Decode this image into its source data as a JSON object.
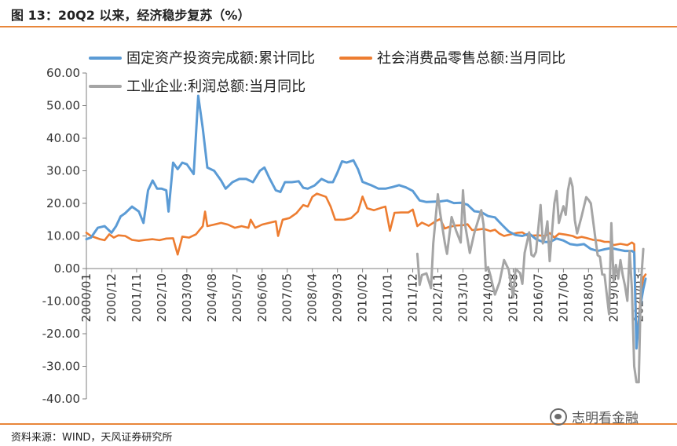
{
  "figure": {
    "title": "图 13：20Q2 以来，经济稳步复苏（%）",
    "source": "资料来源：WIND，天风证券研究所",
    "watermark": "志明看金融",
    "watermark_icon": "wechat-icon"
  },
  "chart_data": {
    "type": "line",
    "title": "",
    "xlabel": "",
    "ylabel": "",
    "ylim": [
      -40,
      60
    ],
    "yticks": [
      "60.00",
      "50.00",
      "40.00",
      "30.00",
      "20.00",
      "10.00",
      "0.00",
      "-10.00",
      "-20.00",
      "-30.00",
      "-40.00"
    ],
    "ytick_values": [
      60,
      50,
      40,
      30,
      20,
      10,
      0,
      -10,
      -20,
      -30,
      -40
    ],
    "x_range": [
      "2000/01",
      "2020/06"
    ],
    "xticks": [
      "2000/01",
      "2000/12",
      "2001/11",
      "2002/10",
      "2003/09",
      "2004/08",
      "2005/07",
      "2006/06",
      "2007/05",
      "2008/04",
      "2009/03",
      "2010/02",
      "2011/01",
      "2011/12",
      "2012/11",
      "2013/10",
      "2014/09",
      "2015/08",
      "2016/07",
      "2017/06",
      "2018/05",
      "2019/04",
      "2020/03"
    ],
    "grid": false,
    "legend_position": "top",
    "series": [
      {
        "name": "固定资产投资完成额:累计同比",
        "color": "#5b9bd5",
        "points": [
          [
            "2000/01",
            9.0
          ],
          [
            "2000/03",
            9.5
          ],
          [
            "2000/06",
            12.5
          ],
          [
            "2000/09",
            13.0
          ],
          [
            "2000/12",
            11.0
          ],
          [
            "2001/02",
            13.0
          ],
          [
            "2001/04",
            16.0
          ],
          [
            "2001/06",
            17.0
          ],
          [
            "2001/09",
            19.0
          ],
          [
            "2001/12",
            17.5
          ],
          [
            "2002/02",
            14.0
          ],
          [
            "2002/04",
            24.0
          ],
          [
            "2002/06",
            27.0
          ],
          [
            "2002/08",
            24.5
          ],
          [
            "2002/10",
            24.5
          ],
          [
            "2002/12",
            24.0
          ],
          [
            "2003/01",
            17.5
          ],
          [
            "2003/03",
            32.5
          ],
          [
            "2003/05",
            30.5
          ],
          [
            "2003/07",
            32.5
          ],
          [
            "2003/09",
            32.0
          ],
          [
            "2003/12",
            29.0
          ],
          [
            "2004/02",
            53.0
          ],
          [
            "2004/04",
            43.0
          ],
          [
            "2004/06",
            31.0
          ],
          [
            "2004/09",
            30.0
          ],
          [
            "2004/12",
            27.0
          ],
          [
            "2005/02",
            24.5
          ],
          [
            "2005/05",
            26.5
          ],
          [
            "2005/08",
            27.5
          ],
          [
            "2005/11",
            27.5
          ],
          [
            "2006/02",
            26.5
          ],
          [
            "2006/05",
            30.0
          ],
          [
            "2006/07",
            31.0
          ],
          [
            "2006/09",
            28.0
          ],
          [
            "2006/12",
            24.0
          ],
          [
            "2007/02",
            23.5
          ],
          [
            "2007/04",
            26.5
          ],
          [
            "2007/07",
            26.5
          ],
          [
            "2007/10",
            26.8
          ],
          [
            "2007/12",
            24.8
          ],
          [
            "2008/02",
            24.5
          ],
          [
            "2008/05",
            25.5
          ],
          [
            "2008/08",
            27.5
          ],
          [
            "2008/11",
            26.5
          ],
          [
            "2009/01",
            26.5
          ],
          [
            "2009/03",
            29.5
          ],
          [
            "2009/05",
            32.9
          ],
          [
            "2009/07",
            32.5
          ],
          [
            "2009/10",
            33.2
          ],
          [
            "2009/12",
            30.5
          ],
          [
            "2010/02",
            26.6
          ],
          [
            "2010/06",
            25.5
          ],
          [
            "2010/09",
            24.5
          ],
          [
            "2010/12",
            24.5
          ],
          [
            "2011/03",
            25.0
          ],
          [
            "2011/06",
            25.6
          ],
          [
            "2011/09",
            24.9
          ],
          [
            "2011/12",
            23.8
          ],
          [
            "2012/03",
            20.9
          ],
          [
            "2012/06",
            20.4
          ],
          [
            "2012/09",
            20.5
          ],
          [
            "2012/12",
            20.6
          ],
          [
            "2013/03",
            20.9
          ],
          [
            "2013/06",
            20.1
          ],
          [
            "2013/09",
            20.2
          ],
          [
            "2013/12",
            19.6
          ],
          [
            "2014/03",
            17.6
          ],
          [
            "2014/06",
            17.3
          ],
          [
            "2014/09",
            16.1
          ],
          [
            "2014/12",
            15.7
          ],
          [
            "2015/03",
            13.5
          ],
          [
            "2015/06",
            11.4
          ],
          [
            "2015/09",
            10.3
          ],
          [
            "2015/12",
            10.0
          ],
          [
            "2016/03",
            10.7
          ],
          [
            "2016/06",
            9.0
          ],
          [
            "2016/09",
            8.2
          ],
          [
            "2016/12",
            8.1
          ],
          [
            "2017/03",
            9.2
          ],
          [
            "2017/06",
            8.6
          ],
          [
            "2017/09",
            7.5
          ],
          [
            "2017/12",
            7.2
          ],
          [
            "2018/03",
            7.5
          ],
          [
            "2018/06",
            6.0
          ],
          [
            "2018/09",
            5.4
          ],
          [
            "2018/12",
            5.9
          ],
          [
            "2019/03",
            6.3
          ],
          [
            "2019/06",
            5.8
          ],
          [
            "2019/09",
            5.4
          ],
          [
            "2019/12",
            5.4
          ],
          [
            "2020/01",
            5.0
          ],
          [
            "2020/02",
            -24.5
          ],
          [
            "2020/03",
            -16.1
          ],
          [
            "2020/04",
            -10.3
          ],
          [
            "2020/05",
            -6.3
          ],
          [
            "2020/06",
            -3.1
          ]
        ]
      },
      {
        "name": "社会消费品零售总额:当月同比",
        "color": "#ed7d31",
        "points": [
          [
            "2000/01",
            11.0
          ],
          [
            "2000/03",
            10.0
          ],
          [
            "2000/05",
            9.5
          ],
          [
            "2000/07",
            9.0
          ],
          [
            "2000/09",
            8.7
          ],
          [
            "2000/11",
            10.5
          ],
          [
            "2001/01",
            9.5
          ],
          [
            "2001/03",
            10.2
          ],
          [
            "2001/06",
            10.0
          ],
          [
            "2001/09",
            8.8
          ],
          [
            "2001/12",
            8.5
          ],
          [
            "2002/03",
            8.8
          ],
          [
            "2002/06",
            9.0
          ],
          [
            "2002/09",
            8.7
          ],
          [
            "2002/12",
            9.2
          ],
          [
            "2003/03",
            9.3
          ],
          [
            "2003/05",
            4.3
          ],
          [
            "2003/07",
            9.8
          ],
          [
            "2003/10",
            9.5
          ],
          [
            "2004/01",
            10.5
          ],
          [
            "2004/04",
            13.0
          ],
          [
            "2004/05",
            17.5
          ],
          [
            "2004/06",
            13.0
          ],
          [
            "2004/09",
            13.5
          ],
          [
            "2004/12",
            14.0
          ],
          [
            "2005/03",
            13.5
          ],
          [
            "2005/06",
            12.5
          ],
          [
            "2005/09",
            13.0
          ],
          [
            "2005/12",
            12.5
          ],
          [
            "2006/01",
            15.0
          ],
          [
            "2006/03",
            12.5
          ],
          [
            "2006/06",
            13.5
          ],
          [
            "2006/09",
            14.0
          ],
          [
            "2006/12",
            14.5
          ],
          [
            "2007/01",
            10.0
          ],
          [
            "2007/03",
            15.0
          ],
          [
            "2007/06",
            15.5
          ],
          [
            "2007/09",
            17.0
          ],
          [
            "2007/12",
            19.5
          ],
          [
            "2008/02",
            19.0
          ],
          [
            "2008/04",
            22.0
          ],
          [
            "2008/06",
            23.0
          ],
          [
            "2008/08",
            22.5
          ],
          [
            "2008/10",
            22.0
          ],
          [
            "2008/12",
            19.0
          ],
          [
            "2009/02",
            15.0
          ],
          [
            "2009/04",
            15.0
          ],
          [
            "2009/06",
            15.0
          ],
          [
            "2009/09",
            15.5
          ],
          [
            "2009/12",
            17.5
          ],
          [
            "2010/02",
            22.1
          ],
          [
            "2010/04",
            18.5
          ],
          [
            "2010/07",
            17.9
          ],
          [
            "2010/10",
            18.6
          ],
          [
            "2010/12",
            19.0
          ],
          [
            "2011/02",
            11.6
          ],
          [
            "2011/04",
            17.1
          ],
          [
            "2011/07",
            17.2
          ],
          [
            "2011/10",
            17.2
          ],
          [
            "2011/12",
            18.1
          ],
          [
            "2012/02",
            13.0
          ],
          [
            "2012/04",
            14.1
          ],
          [
            "2012/07",
            13.1
          ],
          [
            "2012/10",
            14.5
          ],
          [
            "2012/12",
            15.2
          ],
          [
            "2013/02",
            12.3
          ],
          [
            "2013/04",
            12.8
          ],
          [
            "2013/07",
            13.2
          ],
          [
            "2013/10",
            13.3
          ],
          [
            "2013/12",
            13.6
          ],
          [
            "2014/02",
            11.8
          ],
          [
            "2014/04",
            11.9
          ],
          [
            "2014/07",
            12.2
          ],
          [
            "2014/10",
            11.5
          ],
          [
            "2014/12",
            11.9
          ],
          [
            "2015/02",
            10.7
          ],
          [
            "2015/04",
            10.0
          ],
          [
            "2015/07",
            10.5
          ],
          [
            "2015/10",
            11.0
          ],
          [
            "2015/12",
            11.1
          ],
          [
            "2016/02",
            10.2
          ],
          [
            "2016/04",
            10.1
          ],
          [
            "2016/07",
            10.2
          ],
          [
            "2016/10",
            10.0
          ],
          [
            "2016/12",
            10.9
          ],
          [
            "2017/02",
            9.5
          ],
          [
            "2017/04",
            10.7
          ],
          [
            "2017/07",
            10.4
          ],
          [
            "2017/10",
            10.0
          ],
          [
            "2017/12",
            9.4
          ],
          [
            "2018/02",
            9.7
          ],
          [
            "2018/04",
            9.4
          ],
          [
            "2018/07",
            8.8
          ],
          [
            "2018/10",
            8.6
          ],
          [
            "2018/12",
            8.2
          ],
          [
            "2019/02",
            8.2
          ],
          [
            "2019/04",
            7.2
          ],
          [
            "2019/07",
            7.6
          ],
          [
            "2019/10",
            7.2
          ],
          [
            "2019/12",
            8.0
          ],
          [
            "2020/01",
            7.5
          ],
          [
            "2020/02",
            -20.5
          ],
          [
            "2020/03",
            -15.8
          ],
          [
            "2020/04",
            -7.5
          ],
          [
            "2020/05",
            -2.8
          ],
          [
            "2020/06",
            -1.8
          ]
        ]
      },
      {
        "name": "工业企业:利润总额:当月同比",
        "color": "#a5a5a5",
        "points": [
          [
            "2012/02",
            4.5
          ],
          [
            "2012/03",
            -5.0
          ],
          [
            "2012/04",
            -2.0
          ],
          [
            "2012/06",
            -1.5
          ],
          [
            "2012/08",
            -6.0
          ],
          [
            "2012/09",
            7.8
          ],
          [
            "2012/11",
            22.8
          ],
          [
            "2012/12",
            17.1
          ],
          [
            "2013/02",
            8.0
          ],
          [
            "2013/03",
            4.5
          ],
          [
            "2013/05",
            15.8
          ],
          [
            "2013/07",
            11.6
          ],
          [
            "2013/09",
            8.0
          ],
          [
            "2013/10",
            24.0
          ],
          [
            "2013/11",
            13.2
          ],
          [
            "2014/01",
            4.8
          ],
          [
            "2014/03",
            11.0
          ],
          [
            "2014/06",
            17.9
          ],
          [
            "2014/07",
            13.5
          ],
          [
            "2014/08",
            -0.6
          ],
          [
            "2014/09",
            0.4
          ],
          [
            "2014/10",
            -2.1
          ],
          [
            "2014/12",
            -8.0
          ],
          [
            "2015/02",
            -4.2
          ],
          [
            "2015/04",
            2.6
          ],
          [
            "2015/06",
            -0.3
          ],
          [
            "2015/08",
            -8.8
          ],
          [
            "2015/09",
            -0.1
          ],
          [
            "2015/11",
            -1.4
          ],
          [
            "2015/12",
            -4.7
          ],
          [
            "2016/01",
            4.8
          ],
          [
            "2016/03",
            11.1
          ],
          [
            "2016/04",
            4.2
          ],
          [
            "2016/05",
            3.7
          ],
          [
            "2016/06",
            5.1
          ],
          [
            "2016/08",
            19.5
          ],
          [
            "2016/09",
            7.7
          ],
          [
            "2016/10",
            9.8
          ],
          [
            "2016/11",
            14.5
          ],
          [
            "2016/12",
            2.3
          ],
          [
            "2017/02",
            20.0
          ],
          [
            "2017/03",
            23.8
          ],
          [
            "2017/04",
            14.0
          ],
          [
            "2017/05",
            16.7
          ],
          [
            "2017/06",
            19.1
          ],
          [
            "2017/07",
            16.5
          ],
          [
            "2017/08",
            24.0
          ],
          [
            "2017/09",
            27.7
          ],
          [
            "2017/10",
            25.1
          ],
          [
            "2017/11",
            14.9
          ],
          [
            "2017/12",
            10.8
          ],
          [
            "2018/02",
            16.1
          ],
          [
            "2018/04",
            21.9
          ],
          [
            "2018/05",
            21.1
          ],
          [
            "2018/06",
            20.0
          ],
          [
            "2018/08",
            9.2
          ],
          [
            "2018/09",
            4.1
          ],
          [
            "2018/10",
            3.6
          ],
          [
            "2018/11",
            -1.8
          ],
          [
            "2018/12",
            -1.9
          ],
          [
            "2019/02",
            -14.0
          ],
          [
            "2019/03",
            13.9
          ],
          [
            "2019/04",
            -3.7
          ],
          [
            "2019/05",
            1.1
          ],
          [
            "2019/06",
            -3.1
          ],
          [
            "2019/07",
            2.6
          ],
          [
            "2019/08",
            -2.0
          ],
          [
            "2019/09",
            -5.3
          ],
          [
            "2019/10",
            -9.9
          ],
          [
            "2019/11",
            5.4
          ],
          [
            "2019/12",
            -6.3
          ],
          [
            "2020/01",
            -30.0
          ],
          [
            "2020/02",
            -34.9
          ],
          [
            "2020/03",
            -34.9
          ],
          [
            "2020/04",
            -4.3
          ],
          [
            "2020/05",
            6.0
          ]
        ]
      }
    ]
  }
}
